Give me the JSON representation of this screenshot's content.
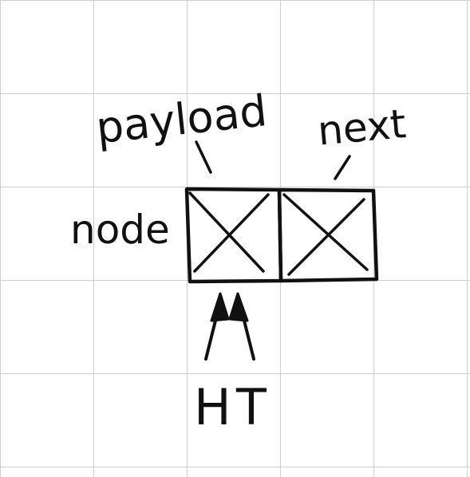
{
  "diagram": {
    "labels": {
      "payload": "payload",
      "next": "next",
      "node": "node",
      "head_pointer": "H",
      "tail_pointer": "T"
    },
    "colors": {
      "ink": "#111111",
      "grid": "#cfcfcf",
      "paper": "#ffffff"
    }
  }
}
